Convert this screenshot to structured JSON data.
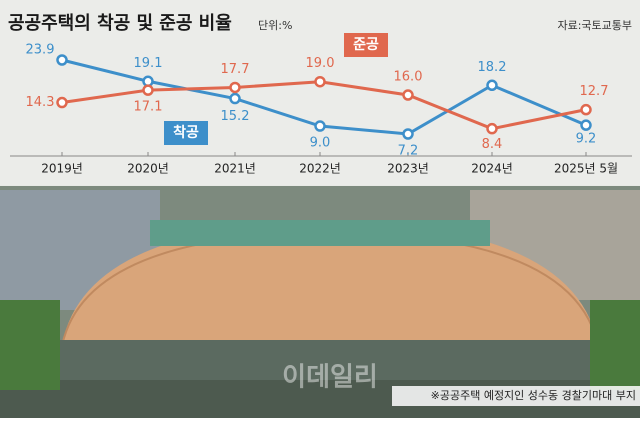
{
  "chart_data": {
    "type": "line",
    "title": "공공주택의 착공 및 준공 비율",
    "unit_label": "단위:%",
    "source": "자료:국토교통부",
    "caption": "※공공주택 예정지인 성수동 경찰기마대 부지",
    "watermark": "이데일리",
    "categories": [
      "2019년",
      "2020년",
      "2021년",
      "2022년",
      "2023년",
      "2024년",
      "2025년 5월"
    ],
    "series": [
      {
        "name": "착공",
        "color": "#3d8fca",
        "values": [
          23.9,
          19.1,
          15.2,
          9.0,
          7.2,
          18.2,
          9.2
        ],
        "value_labels": [
          "23.9",
          "19.1",
          "15.2",
          "9.0",
          "7.2",
          "18.2",
          "9.2"
        ]
      },
      {
        "name": "준공",
        "color": "#e0684e",
        "values": [
          14.3,
          17.1,
          17.7,
          19.0,
          16.0,
          8.4,
          12.7
        ],
        "value_labels": [
          "14.3",
          "17.1",
          "17.7",
          "19.0",
          "16.0",
          "8.4",
          "12.7"
        ]
      }
    ]
  }
}
